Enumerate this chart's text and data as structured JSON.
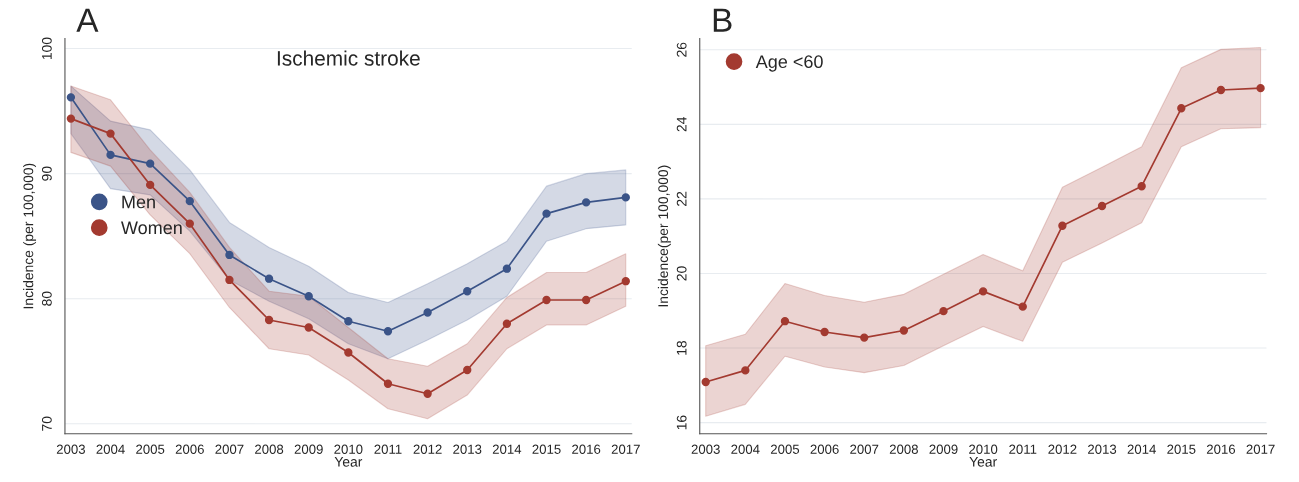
{
  "chart_data": [
    {
      "type": "line",
      "title": "Ischemic stroke",
      "xlabel": "Year",
      "ylabel": "Incidence (per 100,000)",
      "annotations": [
        "A"
      ],
      "categories": [
        "2003",
        "2004",
        "2005",
        "2006",
        "2007",
        "2008",
        "2009",
        "2010",
        "2011",
        "2012",
        "2013",
        "2014",
        "2015",
        "2016",
        "2017"
      ],
      "series": [
        {
          "name": "Men",
          "color": "#3b5488",
          "values": [
            96.1,
            91.5,
            90.8,
            87.8,
            83.5,
            81.6,
            80.2,
            78.2,
            77.4,
            78.9,
            80.6,
            82.4,
            86.8,
            87.7,
            88.1
          ],
          "upper": [
            97.0,
            94.2,
            93.5,
            90.3,
            86.1,
            84.1,
            82.6,
            80.5,
            79.7,
            81.2,
            82.8,
            84.6,
            89.0,
            90.0,
            90.3
          ],
          "lower": [
            93.2,
            88.8,
            88.3,
            85.4,
            81.5,
            79.8,
            78.4,
            76.4,
            75.2,
            76.7,
            78.3,
            80.2,
            84.6,
            85.6,
            85.9
          ]
        },
        {
          "name": "Women",
          "color": "#a33a30",
          "values": [
            94.4,
            93.2,
            89.1,
            86.0,
            81.5,
            78.3,
            77.7,
            75.7,
            73.2,
            72.4,
            74.3,
            78.0,
            79.9,
            79.9,
            81.4
          ],
          "upper": [
            97.0,
            95.9,
            91.9,
            88.5,
            84.1,
            80.6,
            80.2,
            77.7,
            75.2,
            74.6,
            76.4,
            80.1,
            82.1,
            82.1,
            83.6
          ],
          "lower": [
            91.7,
            90.6,
            86.7,
            83.6,
            79.3,
            76.0,
            75.5,
            73.5,
            71.2,
            70.4,
            72.3,
            76.0,
            77.9,
            77.9,
            79.4
          ]
        }
      ],
      "ylim": [
        69.2,
        100.8
      ],
      "yticks": [
        70,
        80,
        90,
        100
      ],
      "grid": "y",
      "legend": "left",
      "marker": "circle",
      "line_style": "solid"
    },
    {
      "type": "line",
      "xlabel": "Year",
      "ylabel": "Incidence(per 100,000)",
      "annotations": [
        "B"
      ],
      "categories": [
        "2003",
        "2004",
        "2005",
        "2006",
        "2007",
        "2008",
        "2009",
        "2010",
        "2011",
        "2012",
        "2013",
        "2014",
        "2015",
        "2016",
        "2017"
      ],
      "series": [
        {
          "name": "Age <60",
          "color": "#a33a30",
          "values": [
            17.09,
            17.4,
            18.72,
            18.43,
            18.28,
            18.47,
            18.99,
            19.52,
            19.11,
            21.28,
            21.81,
            22.34,
            24.43,
            24.92,
            24.97
          ],
          "upper": [
            18.06,
            18.37,
            19.73,
            19.41,
            19.23,
            19.44,
            19.98,
            20.51,
            20.07,
            22.31,
            22.85,
            23.4,
            25.52,
            26.01,
            26.06
          ],
          "lower": [
            16.17,
            16.49,
            17.78,
            17.49,
            17.34,
            17.53,
            18.06,
            18.58,
            18.18,
            20.3,
            20.82,
            21.36,
            23.4,
            23.88,
            23.91
          ]
        }
      ],
      "ylim": [
        15.7,
        26.3
      ],
      "yticks": [
        16,
        18,
        20,
        22,
        24,
        26
      ],
      "grid": "y",
      "legend": "top left",
      "marker": "circle",
      "line_style": "solid"
    }
  ]
}
